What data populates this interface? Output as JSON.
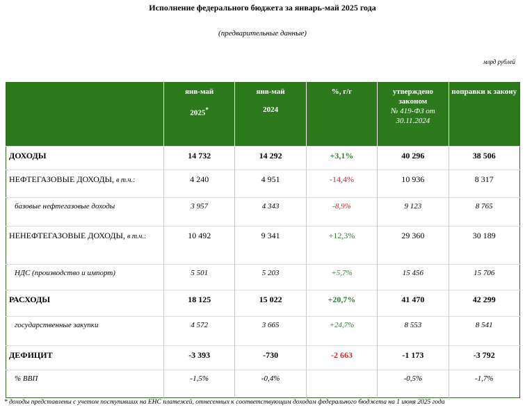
{
  "header": {
    "title": "Исполнение федерального бюджета за январь-май 2025 года",
    "subtitle": "(предварительные данные)",
    "units": "млрд рублей"
  },
  "table": {
    "columns": [
      {
        "text": "янв-май",
        "year": "2025",
        "note": "*"
      },
      {
        "text": "янв-май",
        "year": "2024"
      },
      {
        "text": "%, г/г"
      },
      {
        "text": "утверждено законом",
        "law": "№ 419-ФЗ от 30.11.2024"
      },
      {
        "text": "поправки к закону"
      }
    ],
    "rows": [
      {
        "label": "ДОХОДЫ",
        "style": "bold",
        "values": [
          "14 732",
          "14 292",
          "+3,1%",
          "40 296",
          "38 506"
        ],
        "change_color": "#2e7d32"
      },
      {
        "label": "НЕФТЕГАЗОВЫЕ ДОХОДЫ, ",
        "suffix": "в т.ч.:",
        "style": "normal",
        "values": [
          "4 240",
          "4 951",
          "-14,4%",
          "10 936",
          "8 317"
        ],
        "change_color": "#c62828"
      },
      {
        "label": "базовые нефтегазовые доходы",
        "style": "italic",
        "values": [
          "3 957",
          "4 343",
          "-8,9%",
          "9 123",
          "8 765"
        ],
        "change_color": "#c62828"
      },
      {
        "label": "НЕНЕФТЕГАЗОВЫЕ ДОХОДЫ, ",
        "suffix": "в т.ч.:",
        "style": "normal",
        "values": [
          "10 492",
          "9 341",
          "+12,3%",
          "29 360",
          "30 189"
        ],
        "change_color": "#2e7d32"
      },
      {
        "label": "НДС (производство и импорт)",
        "style": "italic",
        "values": [
          "5 501",
          "5 203",
          "+5,7%",
          "15 456",
          "15 706"
        ],
        "change_color": "#2e7d32"
      },
      {
        "label": "РАСХОДЫ",
        "style": "bold",
        "values": [
          "18 125",
          "15 022",
          "+20,7%",
          "41 470",
          "42 299"
        ],
        "change_color": "#2e7d32"
      },
      {
        "label": "государственные закупки",
        "style": "italic",
        "values": [
          "4 572",
          "3 665",
          "+24,7%",
          "8 553",
          "8 541"
        ],
        "change_color": "#2e7d32"
      },
      {
        "label": "ДЕФИЦИТ",
        "style": "bold",
        "values": [
          "-3 393",
          "-730",
          "-2 663",
          "-1 173",
          "-3 792"
        ],
        "change_color": "#c62828"
      },
      {
        "label": "% ВВП",
        "style": "italic",
        "values": [
          "-1,5%",
          "-0,4%",
          null,
          "-0,5%",
          "-1,7%"
        ],
        "change_color": "#2e7d32"
      }
    ]
  },
  "footnote": "* доходы представлены с учетом поступивших на ЕНС платежей, отнесенных к соответствующим доходам федерального бюджета на 1 июня 2025 года"
}
